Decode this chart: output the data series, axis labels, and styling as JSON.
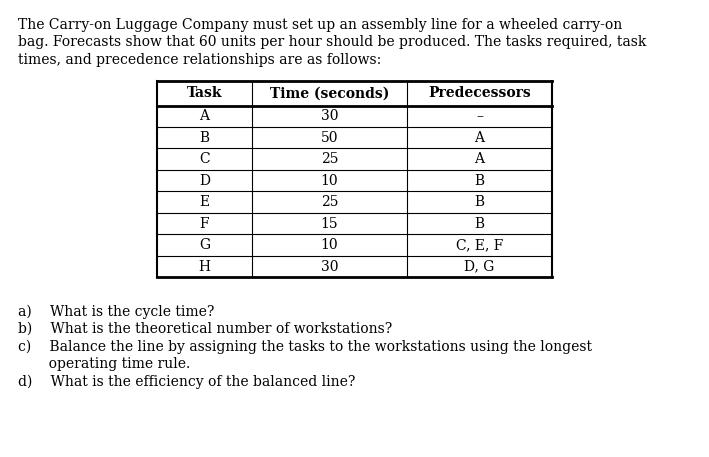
{
  "intro_text_lines": [
    "The Carry-on Luggage Company must set up an assembly line for a wheeled carry-on",
    "bag. Forecasts show that 60 units per hour should be produced. The tasks required, task",
    "times, and precedence relationships are as follows:"
  ],
  "table_headers": [
    "Task",
    "Time (seconds)",
    "Predecessors"
  ],
  "table_rows": [
    [
      "A",
      "30",
      "–"
    ],
    [
      "B",
      "50",
      "A"
    ],
    [
      "C",
      "25",
      "A"
    ],
    [
      "D",
      "10",
      "B"
    ],
    [
      "E",
      "25",
      "B"
    ],
    [
      "F",
      "15",
      "B"
    ],
    [
      "G",
      "10",
      "C, E, F"
    ],
    [
      "H",
      "30",
      "D, G"
    ]
  ],
  "question_lines": [
    [
      "a)  What is the cycle time?"
    ],
    [
      "b)  What is the theoretical number of workstations?"
    ],
    [
      "c)  Balance the line by assigning the tasks to the workstations using the longest",
      "       operating time rule."
    ],
    [
      "d)  What is the efficiency of the balanced line?"
    ]
  ],
  "background_color": "#ffffff",
  "text_color": "#000000",
  "font_size": 10.0,
  "table_font_size": 10.0
}
